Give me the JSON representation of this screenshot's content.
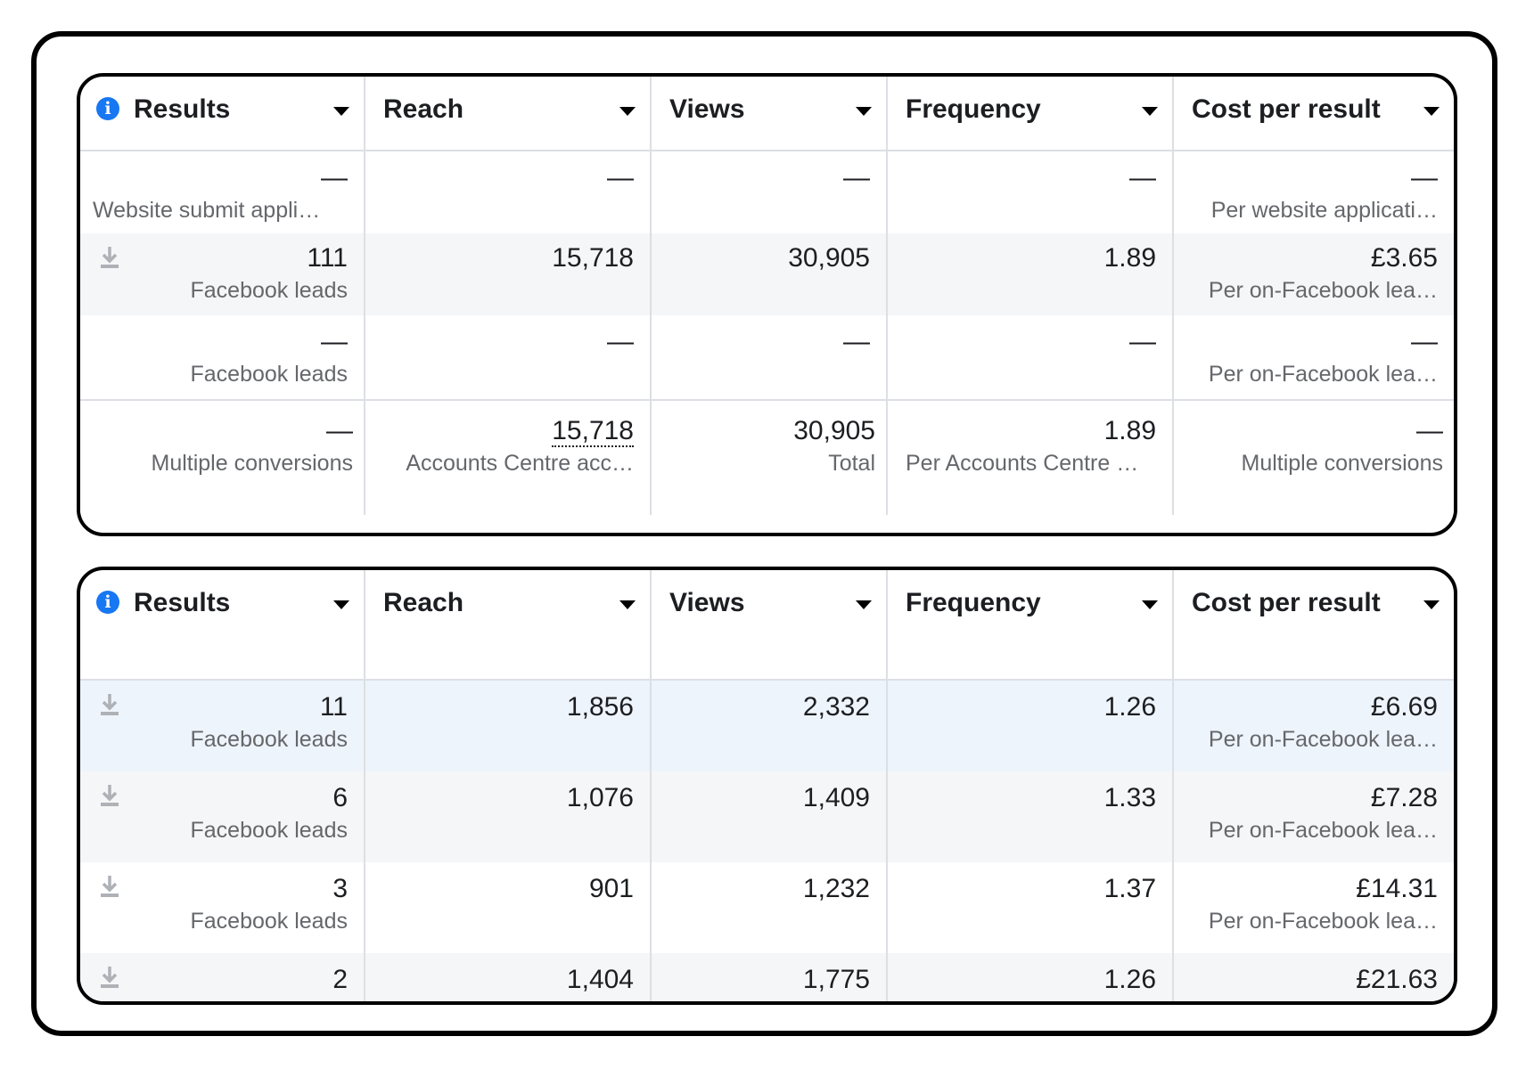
{
  "headers": [
    "Results",
    "Reach",
    "Views",
    "Frequency",
    "Cost per result"
  ],
  "top_table": {
    "rows": [
      {
        "results": "—",
        "results_sub": "Website submit appli…",
        "reach": "—",
        "reach_sub": "",
        "views": "—",
        "views_sub": "",
        "frequency": "—",
        "frequency_sub": "",
        "cost": "—",
        "cost_sub": "Per website applicati…"
      },
      {
        "results": "111",
        "results_sub": "Facebook leads",
        "reach": "15,718",
        "reach_sub": "",
        "views": "30,905",
        "views_sub": "",
        "frequency": "1.89",
        "frequency_sub": "",
        "cost": "£3.65",
        "cost_sub": "Per on-Facebook lea…"
      },
      {
        "results": "—",
        "results_sub": "Facebook leads",
        "reach": "—",
        "reach_sub": "",
        "views": "—",
        "views_sub": "",
        "frequency": "—",
        "frequency_sub": "",
        "cost": "—",
        "cost_sub": "Per on-Facebook lea…"
      },
      {
        "results": "—",
        "results_sub": "Multiple conversions",
        "reach": "15,718",
        "reach_sub": "Accounts Centre acc…",
        "views": "30,905",
        "views_sub": "Total",
        "frequency": "1.89",
        "frequency_sub": "Per Accounts Centre …",
        "cost": "—",
        "cost_sub": "Multiple conversions"
      }
    ]
  },
  "bottom_table": {
    "rows": [
      {
        "results": "11",
        "results_sub": "Facebook leads",
        "reach": "1,856",
        "views": "2,332",
        "frequency": "1.26",
        "cost": "£6.69",
        "cost_sub": "Per on-Facebook lea…"
      },
      {
        "results": "6",
        "results_sub": "Facebook leads",
        "reach": "1,076",
        "views": "1,409",
        "frequency": "1.33",
        "cost": "£7.28",
        "cost_sub": "Per on-Facebook lea…"
      },
      {
        "results": "3",
        "results_sub": "Facebook leads",
        "reach": "901",
        "views": "1,232",
        "frequency": "1.37",
        "cost": "£14.31",
        "cost_sub": "Per on-Facebook lea…"
      },
      {
        "results": "2",
        "results_sub": "",
        "reach": "1,404",
        "views": "1,775",
        "frequency": "1.26",
        "cost": "£21.63",
        "cost_sub": ""
      }
    ]
  },
  "icons": {
    "info": "info-icon",
    "download": "download-icon",
    "sort": "caret-down-icon"
  },
  "colors": {
    "accent": "#1877f2",
    "row_highlight": "#eef4fc",
    "row_alt": "#f5f6f7"
  }
}
